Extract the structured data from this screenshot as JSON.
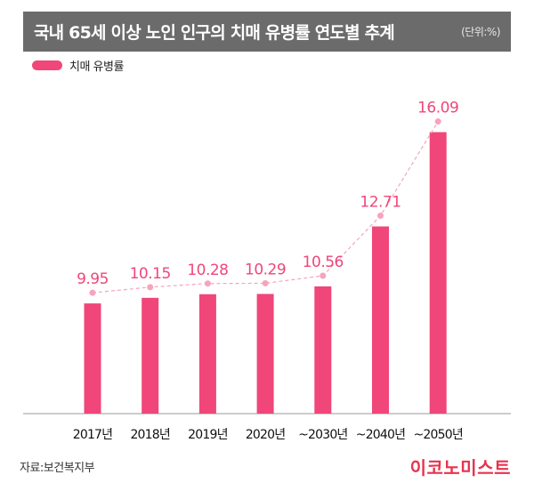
{
  "header": {
    "title": "국내 65세 이상 노인 인구의 치매 유병률 연도별 추계",
    "unit": "(단위:%)"
  },
  "legend": {
    "label": "치매 유병률"
  },
  "footer": {
    "source": "자료:보건복지부",
    "brand": "이코노미스트"
  },
  "colors": {
    "bar": "#f0467a",
    "trend": "#f7a3bd",
    "title_bg": "#6b6b6b",
    "value_label": "#f0467a",
    "brand": "#e8334e"
  },
  "chart_data": {
    "type": "bar",
    "title": "국내 65세 이상 노인 인구의 치매 유병률 연도별 추계",
    "categories": [
      "2017년",
      "2018년",
      "2019년",
      "2020년",
      "~2030년",
      "~2040년",
      "~2050년"
    ],
    "values": [
      9.95,
      10.15,
      10.28,
      10.29,
      10.56,
      12.71,
      16.09
    ],
    "value_labels": [
      "9.95",
      "10.15",
      "10.28",
      "10.29",
      "10.56",
      "12.71",
      "16.09"
    ],
    "series": [
      {
        "name": "치매 유병률",
        "values": [
          9.95,
          10.15,
          10.28,
          10.29,
          10.56,
          12.71,
          16.09
        ]
      }
    ],
    "ylim": [
      6,
      17
    ],
    "grid": false,
    "trend_line": true,
    "legend_position": "top-left"
  }
}
